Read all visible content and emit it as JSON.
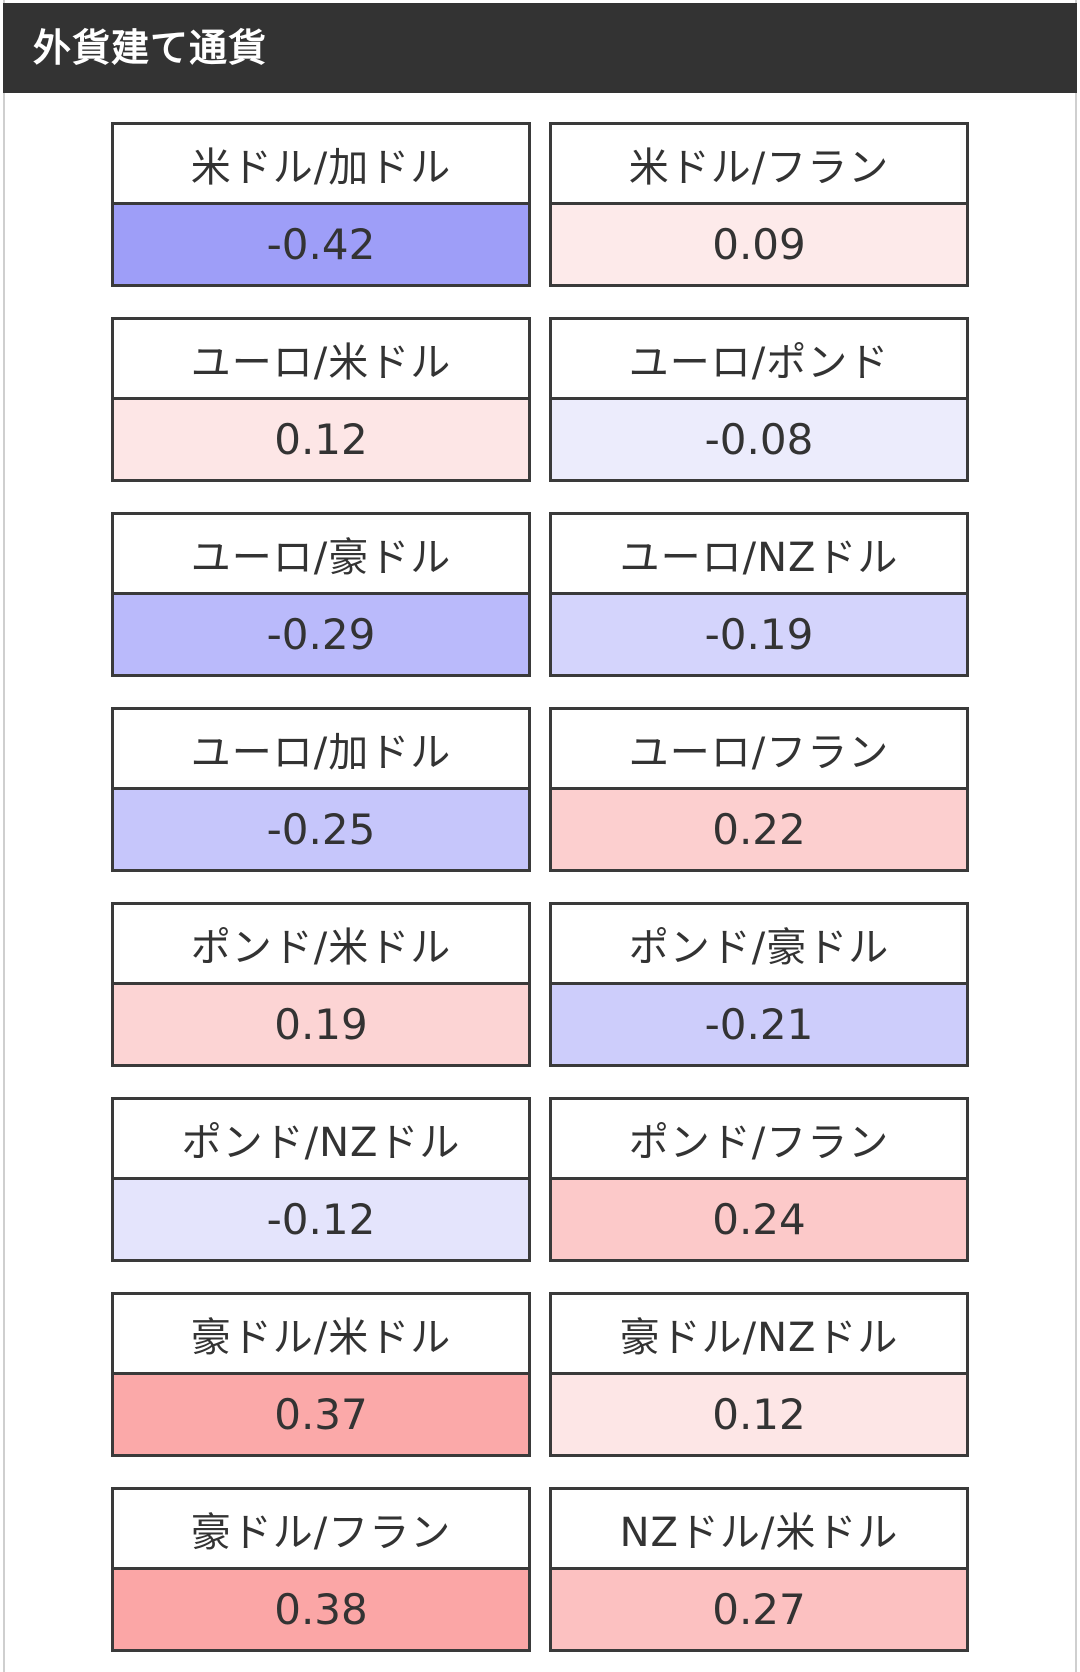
{
  "header": {
    "title": "外貨建て通貨"
  },
  "pairs": [
    {
      "label": "米ドル/加ドル",
      "value": "-0.42",
      "color": "#9e9ef8"
    },
    {
      "label": "米ドル/フラン",
      "value": "0.09",
      "color": "#fdeaea"
    },
    {
      "label": "ユーロ/米ドル",
      "value": "0.12",
      "color": "#fde6e6"
    },
    {
      "label": "ユーロ/ポンド",
      "value": "-0.08",
      "color": "#ececfc"
    },
    {
      "label": "ユーロ/豪ドル",
      "value": "-0.29",
      "color": "#babafb"
    },
    {
      "label": "ユーロ/NZドル",
      "value": "-0.19",
      "color": "#d4d4fc"
    },
    {
      "label": "ユーロ/加ドル",
      "value": "-0.25",
      "color": "#c6c6fb"
    },
    {
      "label": "ユーロ/フラン",
      "value": "0.22",
      "color": "#fccfcf"
    },
    {
      "label": "ポンド/米ドル",
      "value": "0.19",
      "color": "#fcd4d4"
    },
    {
      "label": "ポンド/豪ドル",
      "value": "-0.21",
      "color": "#cdcdfb"
    },
    {
      "label": "ポンド/NZドル",
      "value": "-0.12",
      "color": "#e4e4fc"
    },
    {
      "label": "ポンド/フラン",
      "value": "0.24",
      "color": "#fcc9c9"
    },
    {
      "label": "豪ドル/米ドル",
      "value": "0.37",
      "color": "#fba9a9"
    },
    {
      "label": "豪ドル/NZドル",
      "value": "0.12",
      "color": "#fde6e6"
    },
    {
      "label": "豪ドル/フラン",
      "value": "0.38",
      "color": "#fba6a6"
    },
    {
      "label": "NZドル/米ドル",
      "value": "0.27",
      "color": "#fcc1c1"
    }
  ]
}
